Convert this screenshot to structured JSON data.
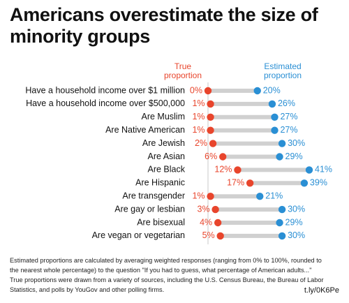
{
  "chart_data": {
    "type": "dumbbell",
    "title": "Americans overestimate the size of minority groups",
    "categories": [
      "Have a household income over $1 million",
      "Have a household income over $500,000",
      "Are Muslim",
      "Are Native American",
      "Are Jewish",
      "Are Asian",
      "Are Black",
      "Are Hispanic",
      "Are transgender",
      "Are gay or lesbian",
      "Are bisexual",
      "Are vegan or vegetarian"
    ],
    "series": [
      {
        "name": "True proportion",
        "color": "#e8452c",
        "values": [
          0,
          1,
          1,
          1,
          2,
          6,
          12,
          17,
          1,
          3,
          4,
          5
        ],
        "value_labels": [
          "0%",
          "1%",
          "1%",
          "1%",
          "2%",
          "6%",
          "12%",
          "17%",
          "1%",
          "3%",
          "4%",
          "5%"
        ]
      },
      {
        "name": "Estimated proportion",
        "color": "#2a8fd4",
        "values": [
          20,
          26,
          27,
          27,
          30,
          29,
          41,
          39,
          21,
          30,
          29,
          30
        ],
        "value_labels": [
          "20%",
          "26%",
          "27%",
          "27%",
          "30%",
          "29%",
          "41%",
          "39%",
          "21%",
          "30%",
          "29%",
          "30%"
        ]
      }
    ],
    "xlim": [
      0,
      41
    ],
    "connector_color": "#d0d0d0",
    "note": "Estimated proportions are calculated by averaging weighted responses (ranging from 0% to 100%, rounded to the nearest whole percentage) to the question \"If you had to guess, what percentage of American adults...\" True proportions were drawn from a variety of sources, including the U.S. Census Bureau, the Bureau of Labor Statistics, and polls by YouGov and other polling firms.",
    "source": "t.ly/0K6Pe"
  }
}
